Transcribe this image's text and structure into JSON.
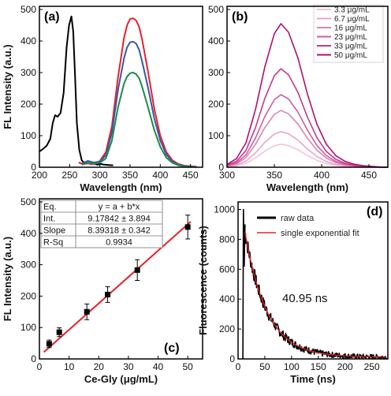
{
  "chart_data": [
    {
      "panel": "(a)",
      "type": "line",
      "xlabel": "Wavelength (nm)",
      "ylabel": "FL Intensity (a.u.)",
      "xlim": [
        200,
        470
      ],
      "ylim": [
        0,
        510
      ],
      "xticks": [
        200,
        250,
        300,
        350,
        400,
        450
      ],
      "yticks": [
        0,
        100,
        200,
        300,
        400,
        500
      ],
      "colors": [
        "#000000",
        "#e8202a",
        "#3957a8",
        "#1d8a4b"
      ],
      "series": [
        {
          "color": "#000000",
          "x": [
            200,
            206,
            212,
            218,
            222,
            226,
            230,
            235,
            240,
            245,
            249,
            253,
            256,
            259,
            262,
            266,
            270,
            275,
            280,
            285,
            290,
            296,
            302,
            308,
            315,
            322
          ],
          "y": [
            50,
            58,
            68,
            90,
            140,
            165,
            160,
            172,
            235,
            380,
            450,
            478,
            430,
            290,
            140,
            55,
            22,
            12,
            14,
            10,
            12,
            8,
            10,
            8,
            7,
            6
          ]
        },
        {
          "color": "#e8202a",
          "x": [
            265,
            272,
            280,
            290,
            300,
            310,
            320,
            330,
            340,
            345,
            350,
            355,
            360,
            365,
            370,
            380,
            390,
            400,
            410,
            420,
            430,
            440,
            450,
            460
          ],
          "y": [
            15,
            10,
            12,
            10,
            20,
            48,
            130,
            285,
            410,
            450,
            470,
            472,
            465,
            445,
            405,
            300,
            185,
            100,
            48,
            22,
            10,
            5,
            3,
            2
          ]
        },
        {
          "color": "#3957a8",
          "x": [
            270,
            280,
            290,
            300,
            310,
            320,
            330,
            340,
            345,
            350,
            355,
            360,
            365,
            370,
            380,
            390,
            400,
            410,
            420,
            430,
            440,
            450,
            460
          ],
          "y": [
            12,
            20,
            15,
            18,
            38,
            110,
            245,
            345,
            380,
            396,
            398,
            392,
            372,
            335,
            250,
            155,
            85,
            40,
            18,
            8,
            4,
            2,
            1
          ]
        },
        {
          "color": "#1d8a4b",
          "x": [
            270,
            280,
            290,
            300,
            310,
            320,
            330,
            340,
            345,
            350,
            355,
            360,
            365,
            370,
            380,
            390,
            400,
            410,
            420,
            430,
            440,
            450,
            460
          ],
          "y": [
            8,
            14,
            12,
            14,
            28,
            85,
            190,
            265,
            287,
            298,
            300,
            295,
            282,
            255,
            188,
            118,
            65,
            30,
            14,
            6,
            3,
            2,
            1
          ]
        }
      ]
    },
    {
      "panel": "(b)",
      "type": "line",
      "xlabel": "Wavelength (nm)",
      "xlim": [
        300,
        470
      ],
      "ylim": [
        0,
        510
      ],
      "xticks": [
        300,
        350,
        400,
        450
      ],
      "yticks": [
        0,
        100,
        200,
        300,
        400,
        500
      ],
      "legend_position": "top-right",
      "series": [
        {
          "name": "3.3 μg/mL",
          "color": "#f2c4dc",
          "peak": 73
        },
        {
          "name": "6.7 μg/mL",
          "color": "#e9a5c8",
          "peak": 113
        },
        {
          "name": "16 μg/mL",
          "color": "#dc84b4",
          "peak": 180
        },
        {
          "name": "23 μg/mL",
          "color": "#cf5e9e",
          "peak": 230
        },
        {
          "name": "33 μg/mL",
          "color": "#c13b8b",
          "peak": 312
        },
        {
          "name": "50 μg/mL",
          "color": "#b01076",
          "peak": 455
        }
      ],
      "peak_x": 357,
      "profile": {
        "x": [
          300,
          310,
          320,
          330,
          340,
          350,
          357,
          365,
          375,
          385,
          395,
          405,
          415,
          425,
          435,
          445,
          455,
          465,
          470
        ],
        "rel": [
          0.02,
          0.06,
          0.17,
          0.4,
          0.7,
          0.93,
          1.0,
          0.94,
          0.76,
          0.51,
          0.3,
          0.16,
          0.08,
          0.04,
          0.02,
          0.01,
          0.005,
          0.0,
          0.0
        ]
      }
    },
    {
      "panel": "(c)",
      "type": "scatter",
      "xlabel": "Ce-Gly (μg/mL)",
      "ylabel": "FL Intensity (a.u.)",
      "xlim": [
        0,
        55
      ],
      "ylim": [
        0,
        510
      ],
      "xticks": [
        0,
        10,
        20,
        30,
        40,
        50
      ],
      "yticks": [
        0,
        100,
        200,
        300,
        400,
        500
      ],
      "points": [
        {
          "x": 3.3,
          "y": 48,
          "err": 12
        },
        {
          "x": 6.7,
          "y": 85,
          "err": 14
        },
        {
          "x": 16,
          "y": 150,
          "err": 25
        },
        {
          "x": 23,
          "y": 205,
          "err": 25
        },
        {
          "x": 33,
          "y": 283,
          "err": 33
        },
        {
          "x": 50,
          "y": 420,
          "err": 38
        }
      ],
      "fit": {
        "intercept": 9.17842,
        "slope": 8.39318,
        "color": "#e8202a"
      },
      "table": [
        [
          "Eq.",
          "y = a + b*x"
        ],
        [
          "Int.",
          "9.17842 ± 3.894"
        ],
        [
          "Slope",
          "8.39318 ± 0.342"
        ],
        [
          "R-Sq",
          "0.9934"
        ]
      ]
    },
    {
      "panel": "(d)",
      "type": "line",
      "xlabel": "Time (ns)",
      "ylabel": "Fluorescence (counts)",
      "xlim": [
        0,
        280
      ],
      "ylim": [
        0,
        1050
      ],
      "xticks": [
        0,
        50,
        100,
        150,
        200,
        250
      ],
      "yticks": [
        0,
        200,
        400,
        600,
        800,
        1000
      ],
      "series": [
        {
          "name": "raw data",
          "color": "#000000"
        },
        {
          "name": "single exponential fit",
          "color": "#e8202a"
        }
      ],
      "decay": {
        "t0": 10,
        "amplitude": 900,
        "tau": 40.95,
        "offset": 12,
        "t_end": 278
      },
      "annotation": "40.95 ns"
    }
  ]
}
